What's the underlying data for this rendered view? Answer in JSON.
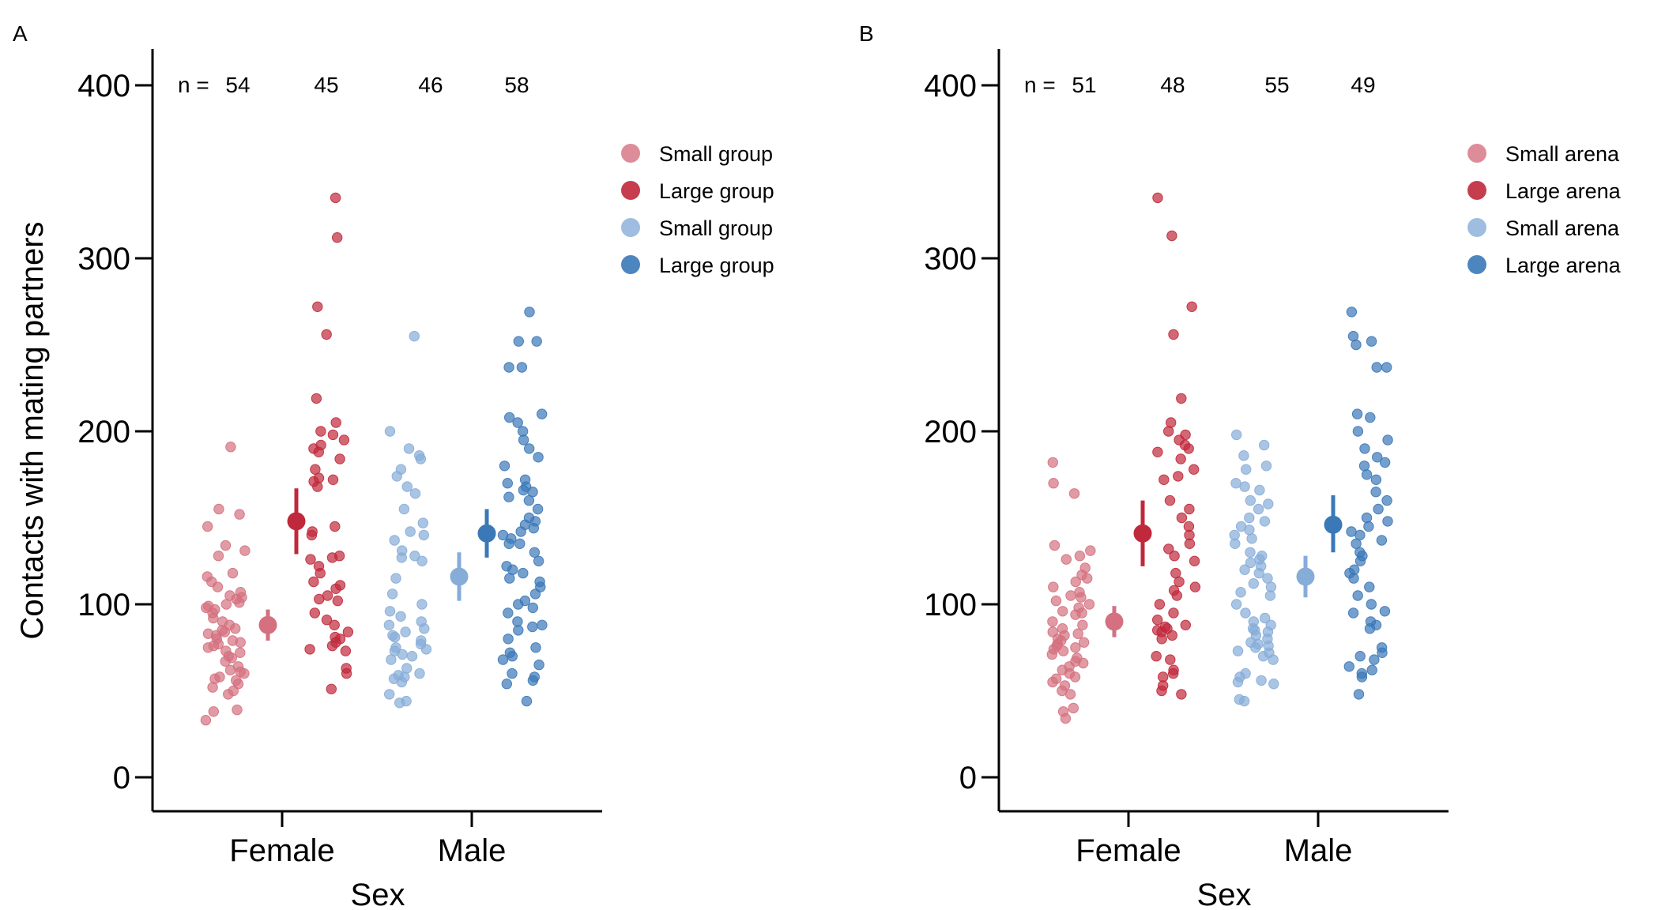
{
  "colors": {
    "small_female": "#d4707f",
    "large_female": "#c0283b",
    "small_male": "#86acd8",
    "large_male": "#3a78b8",
    "axis": "#000000"
  },
  "shared": {
    "ylabel": "Contacts with mating partners",
    "xlabel": "Sex",
    "categories": [
      "Female",
      "Male"
    ],
    "n_prefix": "n =",
    "yticks": [
      0,
      100,
      200,
      300,
      400
    ],
    "ylim": [
      0,
      400
    ]
  },
  "chart_data": [
    {
      "type": "scatter",
      "panel_label": "A",
      "title": "",
      "xlabel": "Sex",
      "ylabel": "Contacts with mating partners",
      "ylim": [
        0,
        400
      ],
      "n_counts": [
        "54",
        "45",
        "46",
        "58"
      ],
      "legend": {
        "placement": "top-right",
        "entries": [
          "Small group",
          "Large group",
          "Small group",
          "Large group"
        ]
      },
      "series": [
        {
          "name": "Small group",
          "sex": "Female",
          "color_key": "small_female",
          "mean": 88,
          "ci": [
            79,
            97
          ],
          "values": [
            191,
            155,
            152,
            145,
            134,
            131,
            128,
            118,
            116,
            113,
            110,
            107,
            105,
            104,
            103,
            101,
            100,
            99,
            98,
            97,
            95,
            92,
            90,
            88,
            86,
            85,
            84,
            83,
            82,
            80,
            79,
            78,
            77,
            76,
            75,
            73,
            72,
            70,
            69,
            67,
            64,
            62,
            61,
            60,
            58,
            57,
            56,
            54,
            52,
            50,
            48,
            39,
            38,
            33
          ]
        },
        {
          "name": "Large group",
          "sex": "Female",
          "color_key": "large_female",
          "mean": 148,
          "ci": [
            129,
            167
          ],
          "values": [
            335,
            312,
            272,
            256,
            219,
            205,
            200,
            198,
            195,
            192,
            190,
            188,
            184,
            178,
            173,
            171,
            168,
            145,
            142,
            140,
            128,
            126,
            122,
            118,
            113,
            111,
            109,
            105,
            103,
            95,
            91,
            88,
            84,
            81,
            80,
            78,
            76,
            74,
            73,
            63,
            60,
            51,
            172,
            127,
            102
          ]
        },
        {
          "name": "Small group",
          "sex": "Male",
          "color_key": "small_male",
          "mean": 116,
          "ci": [
            102,
            130
          ],
          "values": [
            255,
            200,
            190,
            186,
            184,
            178,
            174,
            168,
            164,
            155,
            147,
            142,
            140,
            131,
            128,
            127,
            125,
            115,
            106,
            100,
            93,
            90,
            88,
            86,
            84,
            82,
            79,
            77,
            75,
            74,
            73,
            71,
            70,
            68,
            63,
            60,
            59,
            58,
            57,
            55,
            48,
            44,
            43,
            137,
            96,
            81
          ]
        },
        {
          "name": "Large group",
          "sex": "Male",
          "color_key": "large_male",
          "mean": 141,
          "ci": [
            127,
            155
          ],
          "values": [
            269,
            252,
            252,
            237,
            237,
            210,
            208,
            205,
            200,
            195,
            190,
            185,
            180,
            172,
            170,
            168,
            166,
            165,
            162,
            160,
            155,
            150,
            148,
            146,
            144,
            142,
            140,
            138,
            135,
            130,
            125,
            122,
            120,
            118,
            115,
            113,
            110,
            106,
            100,
            98,
            95,
            90,
            88,
            87,
            85,
            80,
            75,
            72,
            70,
            68,
            65,
            60,
            58,
            56,
            54,
            44,
            135,
            102
          ]
        }
      ]
    },
    {
      "type": "scatter",
      "panel_label": "B",
      "title": "",
      "xlabel": "Sex",
      "ylabel": "Contacts with mating partners",
      "ylim": [
        0,
        400
      ],
      "n_counts": [
        "51",
        "48",
        "55",
        "49"
      ],
      "legend": {
        "placement": "top-right",
        "entries": [
          "Small arena",
          "Large arena",
          "Small arena",
          "Large arena"
        ]
      },
      "series": [
        {
          "name": "Small arena",
          "sex": "Female",
          "color_key": "small_female",
          "mean": 90,
          "ci": [
            81,
            99
          ],
          "values": [
            182,
            170,
            164,
            134,
            131,
            128,
            126,
            121,
            117,
            113,
            110,
            107,
            105,
            104,
            102,
            100,
            98,
            96,
            94,
            90,
            86,
            84,
            83,
            82,
            80,
            79,
            78,
            77,
            76,
            75,
            73,
            71,
            69,
            67,
            64,
            62,
            60,
            58,
            57,
            55,
            53,
            50,
            48,
            40,
            38,
            34,
            95,
            88,
            74,
            66,
            115
          ]
        },
        {
          "name": "Large arena",
          "sex": "Female",
          "color_key": "large_female",
          "mean": 141,
          "ci": [
            122,
            160
          ],
          "values": [
            335,
            313,
            272,
            256,
            219,
            205,
            200,
            198,
            195,
            192,
            190,
            188,
            184,
            178,
            174,
            172,
            160,
            155,
            150,
            145,
            140,
            135,
            128,
            125,
            118,
            113,
            110,
            105,
            100,
            95,
            91,
            88,
            86,
            85,
            84,
            82,
            80,
            70,
            68,
            62,
            60,
            58,
            53,
            50,
            48,
            132,
            108,
            87
          ]
        },
        {
          "name": "Small arena",
          "sex": "Male",
          "color_key": "small_male",
          "mean": 116,
          "ci": [
            104,
            128
          ],
          "values": [
            198,
            192,
            186,
            180,
            178,
            170,
            168,
            166,
            160,
            158,
            155,
            150,
            148,
            145,
            140,
            138,
            135,
            130,
            128,
            126,
            124,
            122,
            120,
            118,
            115,
            110,
            107,
            105,
            100,
            95,
            92,
            90,
            88,
            86,
            84,
            82,
            80,
            78,
            77,
            76,
            75,
            73,
            72,
            70,
            68,
            60,
            58,
            56,
            55,
            54,
            45,
            44,
            143,
            112,
            85
          ]
        },
        {
          "name": "Large arena",
          "sex": "Male",
          "color_key": "large_male",
          "mean": 146,
          "ci": [
            130,
            163
          ],
          "values": [
            269,
            255,
            252,
            250,
            237,
            237,
            210,
            208,
            200,
            195,
            190,
            185,
            182,
            180,
            175,
            172,
            165,
            160,
            155,
            150,
            148,
            145,
            142,
            140,
            135,
            130,
            128,
            125,
            118,
            115,
            110,
            105,
            100,
            96,
            90,
            88,
            86,
            75,
            72,
            70,
            68,
            64,
            62,
            60,
            58,
            48,
            137,
            120,
            95
          ]
        }
      ]
    }
  ]
}
